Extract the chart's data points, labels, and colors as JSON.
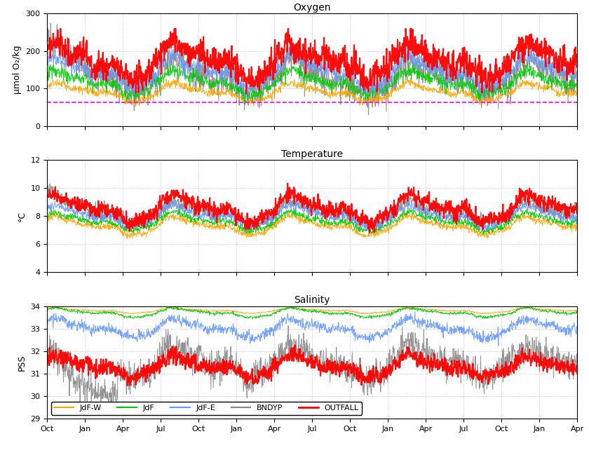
{
  "title_oxygen": "Oxygen",
  "title_temperature": "Temperature",
  "title_salinity": "Salinity",
  "ylabel_oxygen": "μmol O₂/kg",
  "ylabel_temperature": "°C",
  "ylabel_salinity": "PSS",
  "ylim_oxygen": [
    0,
    300
  ],
  "ylim_temperature": [
    4,
    12
  ],
  "ylim_salinity": [
    29,
    34
  ],
  "yticks_oxygen": [
    0,
    100,
    200,
    300
  ],
  "yticks_temperature": [
    4,
    6,
    8,
    10,
    12
  ],
  "yticks_salinity": [
    29,
    30,
    31,
    32,
    33,
    34
  ],
  "xtick_labels": [
    "Oct",
    "Jan",
    "Apr",
    "Jul",
    "Oct",
    "Jan",
    "Apr",
    "Jul",
    "Oct",
    "Jan",
    "Apr",
    "Jul",
    "Oct",
    "Jan",
    "Apr"
  ],
  "colors": {
    "JdF-W": "#FFA500",
    "JdF": "#00CC00",
    "JdF-E": "#6699FF",
    "BNDYP": "#888888",
    "OUTFALL": "#FF0000"
  },
  "legend_labels": [
    "JdF-W",
    "JdF",
    "JdF-E",
    "BNDYP",
    "OUTFALL"
  ],
  "hypoxia_line": 63,
  "hypoxia_color": "#FF00FF",
  "n_points": 1500,
  "background_color": "#ffffff",
  "grid_color": "#cccccc"
}
